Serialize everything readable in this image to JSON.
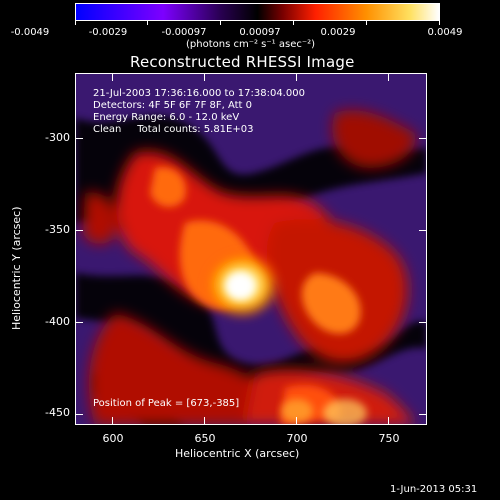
{
  "colorbar": {
    "ticks": [
      "-0.0049",
      "-0.0029",
      "-0.00097",
      "0.00097",
      "0.0029",
      "0.0049"
    ],
    "units": "(photons cm⁻² s⁻¹ asec⁻²)",
    "colors": [
      "#0000ff",
      "#7d00ff",
      "#000000",
      "#ff2000",
      "#ff9000",
      "#ffffff"
    ]
  },
  "title": "Reconstructed RHESSI Image",
  "info": {
    "time_range": "21-Jul-2003 17:36:16.000 to 17:38:04.000",
    "detectors": "Detectors: 4F 5F 6F 7F 8F, Att 0",
    "energy": "Energy Range: 6.0 - 12.0 keV",
    "clean": "Clean     Total counts: 5.81E+03",
    "peak": "Position of Peak = [673,-385]"
  },
  "axes": {
    "xlabel": "Heliocentric X (arcsec)",
    "ylabel": "Heliocentric Y (arcsec)",
    "xticks": [
      "600",
      "650",
      "700",
      "750"
    ],
    "yticks": [
      "-300",
      "-350",
      "-400",
      "-450"
    ],
    "xrange": [
      579,
      770
    ],
    "yrange": [
      -465,
      -274
    ]
  },
  "peak_position": {
    "x": 673,
    "y": -385
  },
  "footer_timestamp": "1-Jun-2013 05:31"
}
